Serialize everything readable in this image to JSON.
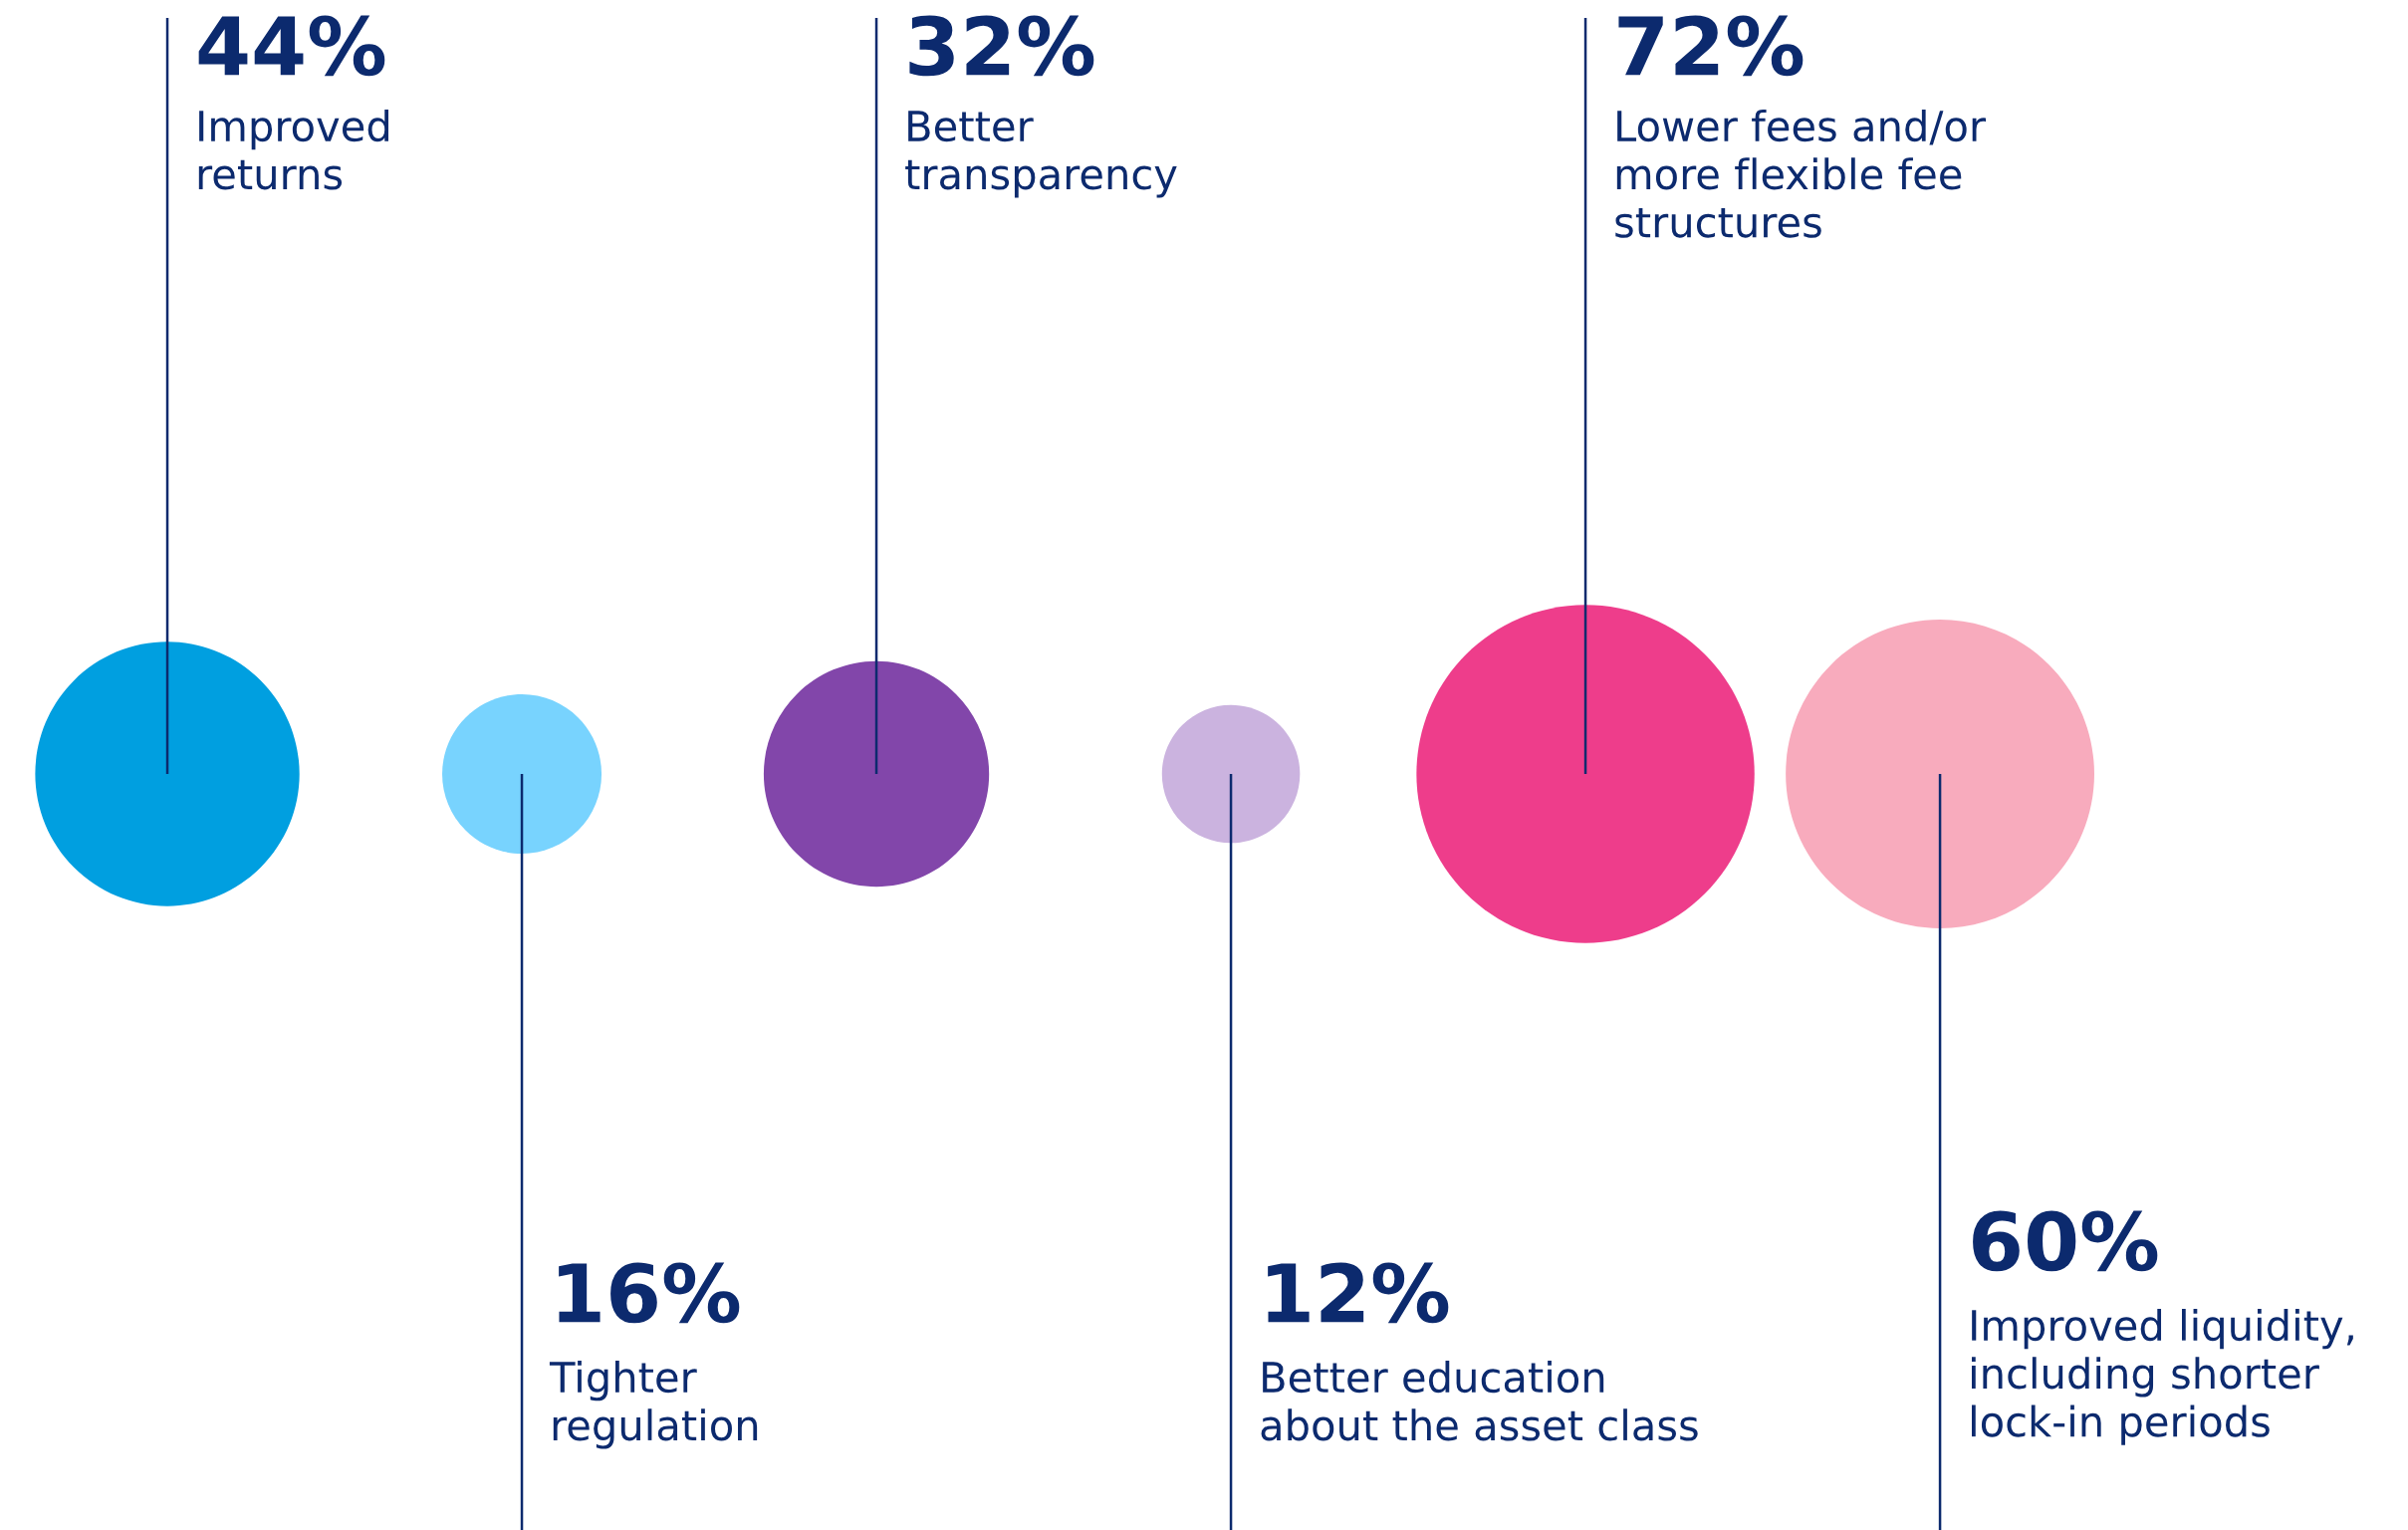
{
  "chart_data": {
    "type": "other",
    "categories": [
      "Improved\nreturns",
      "Tighter\nregulation",
      "Better\ntransparency",
      "Better education\nabout the asset class",
      "Lower fees and/or\nmore flexible fee\nstructures",
      "Improved liquidity,\nincluding shorter\nlock-in periods"
    ],
    "values": [
      44,
      16,
      32,
      12,
      72,
      60
    ],
    "value_labels": [
      "44%",
      "16%",
      "32%",
      "12%",
      "72%",
      "60%"
    ],
    "colors": [
      "#009fe0",
      "#78d3fe",
      "#8246aa",
      "#cbb3df",
      "#ee3d8b",
      "#f8abbd"
    ]
  }
}
